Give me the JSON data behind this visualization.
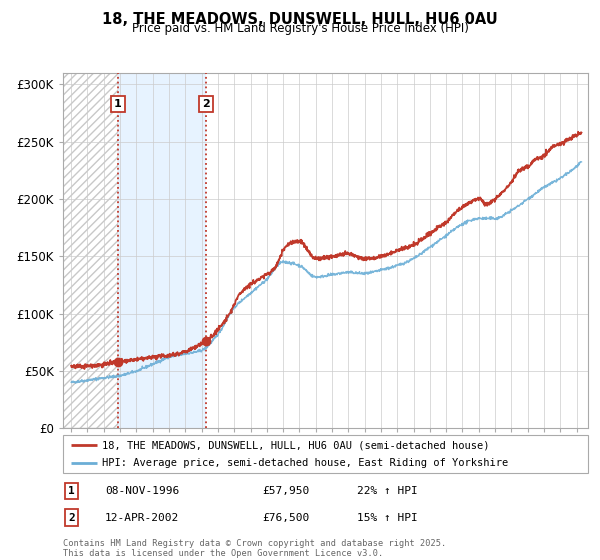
{
  "title": "18, THE MEADOWS, DUNSWELL, HULL, HU6 0AU",
  "subtitle": "Price paid vs. HM Land Registry's House Price Index (HPI)",
  "legend_line1": "18, THE MEADOWS, DUNSWELL, HULL, HU6 0AU (semi-detached house)",
  "legend_line2": "HPI: Average price, semi-detached house, East Riding of Yorkshire",
  "sale1_date": "08-NOV-1996",
  "sale1_price": "£57,950",
  "sale1_hpi": "22% ↑ HPI",
  "sale1_x": 1996.86,
  "sale1_y": 57950,
  "sale2_date": "12-APR-2002",
  "sale2_price": "£76,500",
  "sale2_hpi": "15% ↑ HPI",
  "sale2_x": 2002.28,
  "sale2_y": 76500,
  "footer": "Contains HM Land Registry data © Crown copyright and database right 2025.\nThis data is licensed under the Open Government Licence v3.0.",
  "hpi_color": "#6baed6",
  "price_color": "#c0392b",
  "shade_color": "#ddeeff",
  "ylim": [
    0,
    310000
  ],
  "xlim_start": 1993.5,
  "xlim_end": 2025.7,
  "yticks": [
    0,
    50000,
    100000,
    150000,
    200000,
    250000,
    300000
  ],
  "ytick_labels": [
    "£0",
    "£50K",
    "£100K",
    "£150K",
    "£200K",
    "£250K",
    "£300K"
  ],
  "xticks": [
    1994,
    1995,
    1996,
    1997,
    1998,
    1999,
    2000,
    2001,
    2002,
    2003,
    2004,
    2005,
    2006,
    2007,
    2008,
    2009,
    2010,
    2011,
    2012,
    2013,
    2014,
    2015,
    2016,
    2017,
    2018,
    2019,
    2020,
    2021,
    2022,
    2023,
    2024,
    2025
  ],
  "hpi_anchors_x": [
    1994.0,
    1995.0,
    1996.0,
    1997.0,
    1998.0,
    1999.0,
    2000.0,
    2001.0,
    2002.0,
    2003.0,
    2004.0,
    2005.0,
    2006.0,
    2007.0,
    2008.0,
    2009.0,
    2010.0,
    2011.0,
    2012.0,
    2013.0,
    2014.0,
    2015.0,
    2016.0,
    2017.0,
    2018.0,
    2019.0,
    2020.0,
    2021.0,
    2022.0,
    2023.0,
    2024.0,
    2025.3
  ],
  "hpi_anchors_y": [
    40000,
    42000,
    44000,
    46000,
    50000,
    56000,
    62000,
    65000,
    68000,
    82000,
    105000,
    118000,
    130000,
    145000,
    142000,
    132000,
    134000,
    136000,
    135000,
    138000,
    142000,
    148000,
    158000,
    168000,
    178000,
    183000,
    183000,
    190000,
    200000,
    210000,
    218000,
    232000
  ],
  "price_anchors_x": [
    1994.0,
    1995.5,
    1996.5,
    1996.86,
    1997.5,
    1999.0,
    2000.5,
    2002.28,
    2003.5,
    2004.5,
    2005.5,
    2006.5,
    2007.0,
    2007.5,
    2008.0,
    2009.0,
    2010.0,
    2011.0,
    2012.0,
    2013.0,
    2014.0,
    2015.0,
    2016.0,
    2017.0,
    2018.0,
    2019.0,
    2019.5,
    2020.0,
    2021.0,
    2021.5,
    2022.0,
    2022.5,
    2023.0,
    2023.5,
    2024.0,
    2024.5,
    2025.3
  ],
  "price_anchors_y": [
    54000,
    55000,
    57000,
    57950,
    59000,
    62000,
    65000,
    76500,
    95000,
    120000,
    130000,
    140000,
    155000,
    162000,
    163000,
    148000,
    150000,
    152000,
    148000,
    150000,
    155000,
    160000,
    170000,
    180000,
    193000,
    200000,
    195000,
    200000,
    215000,
    225000,
    228000,
    235000,
    238000,
    245000,
    248000,
    252000,
    258000
  ]
}
